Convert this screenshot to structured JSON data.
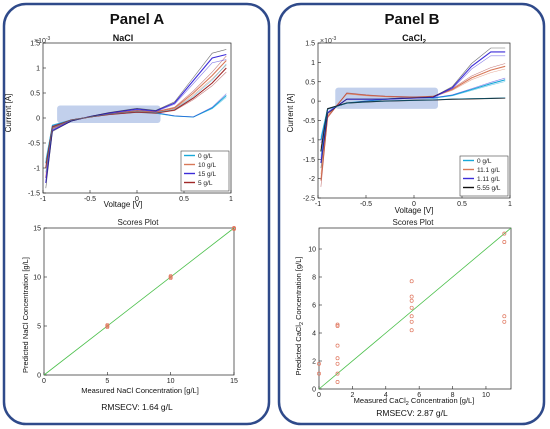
{
  "colors": {
    "panel_border": "#2f4a8a",
    "highlight": "#aec0e6",
    "fit_line": "#4cc04c",
    "scores_marker": "#e07860",
    "series_palette": [
      "#18a8d8",
      "#d87858",
      "#3c2cd8",
      "#a02828",
      "#101010"
    ]
  },
  "panels": [
    {
      "title": "Panel A",
      "rmsecv": "RMSECV: 1.64 g/L",
      "voltammogram": {
        "title": "NaCl",
        "exponent_label": "×10",
        "exponent_power": "-3",
        "xlabel": "Voltage [V]",
        "ylabel": "Current [A]",
        "xlim": [
          -1,
          1
        ],
        "ylim": [
          -1.5,
          1.5
        ],
        "xticks": [
          "-1",
          "-0.5",
          "0",
          "0.5",
          "1"
        ],
        "yticks": [
          "-1.5",
          "-1",
          "-0.5",
          "0",
          "0.5",
          "1",
          "1.5"
        ],
        "highlight_x": [
          -0.85,
          0.25
        ],
        "highlight_y": [
          -0.1,
          0.25
        ],
        "legend_placement": "bottom-right",
        "legend": [
          "0 g/L",
          "10 g/L",
          "15 g/L",
          "5 g/L"
        ],
        "legend_colors": [
          "#18a8d8",
          "#d87858",
          "#3c2cd8",
          "#a02828"
        ]
      },
      "scores": {
        "title": "Scores Plot",
        "xlabel": "Measured NaCl Concentration [g/L]",
        "ylabel": "Predicted  NaCl Concentration [g/L]",
        "xlim": [
          0,
          15
        ],
        "ylim": [
          0,
          15
        ],
        "xticks": [
          "0",
          "5",
          "10",
          "15"
        ],
        "yticks": [
          "0",
          "5",
          "10",
          "15"
        ],
        "points": [
          [
            5,
            4.9
          ],
          [
            5,
            5.1
          ],
          [
            5,
            5.0
          ],
          [
            10,
            9.9
          ],
          [
            10,
            10.1
          ],
          [
            10,
            10.0
          ],
          [
            15,
            14.9
          ],
          [
            15,
            15.0
          ],
          [
            15,
            14.95
          ]
        ]
      }
    },
    {
      "title": "Panel B",
      "rmsecv": "RMSECV: 2.87 g/L",
      "voltammogram": {
        "title": "CaCl",
        "title_sub": "2",
        "exponent_label": "×10",
        "exponent_power": "-3",
        "xlabel": "Voltage [V]",
        "ylabel": "Current [A]",
        "xlim": [
          -1,
          1
        ],
        "ylim": [
          -2.5,
          1.5
        ],
        "xticks": [
          "-1",
          "-0.5",
          "0",
          "0.5",
          "1"
        ],
        "yticks": [
          "-2.5",
          "-2",
          "-1.5",
          "-1",
          "-0.5",
          "0",
          "0.5",
          "1",
          "1.5"
        ],
        "highlight_x": [
          -0.82,
          0.25
        ],
        "highlight_y": [
          -0.2,
          0.35
        ],
        "legend_placement": "bottom-right",
        "legend": [
          "0 g/L",
          "11.1 g/L",
          "1.11 g/L",
          "5.55 g/L"
        ],
        "legend_colors": [
          "#18a8d8",
          "#d87858",
          "#3c2cd8",
          "#101010"
        ]
      },
      "scores": {
        "title": "Scores Plot",
        "xlabel": "Measured CaCl",
        "xlabel_sub": "2",
        "xlabel_tail": " Concentration [g/L]",
        "ylabel": "Predicted  CaCl",
        "ylabel_sub": "2",
        "ylabel_tail": " Concentration [g/L]",
        "xlim": [
          0,
          11.5
        ],
        "ylim": [
          0,
          11.5
        ],
        "xticks": [
          "0",
          "2",
          "4",
          "6",
          "8",
          "10"
        ],
        "yticks": [
          "0",
          "2",
          "4",
          "6",
          "8",
          "10"
        ],
        "points": [
          [
            0,
            1.1
          ],
          [
            0,
            1.8
          ],
          [
            1.11,
            4.5
          ],
          [
            1.11,
            4.6
          ],
          [
            1.11,
            3.1
          ],
          [
            1.11,
            2.2
          ],
          [
            1.11,
            1.8
          ],
          [
            1.11,
            1.1
          ],
          [
            1.11,
            0.5
          ],
          [
            5.55,
            7.7
          ],
          [
            5.55,
            6.6
          ],
          [
            5.55,
            6.3
          ],
          [
            5.55,
            5.8
          ],
          [
            5.55,
            5.2
          ],
          [
            5.55,
            4.8
          ],
          [
            5.55,
            4.2
          ],
          [
            11.1,
            11.1
          ],
          [
            11.1,
            10.5
          ],
          [
            11.1,
            5.2
          ],
          [
            11.1,
            4.8
          ]
        ]
      }
    }
  ],
  "chart_data": [
    {
      "type": "line",
      "title": "NaCl",
      "xlabel": "Voltage [V]",
      "ylabel": "Current [A]",
      "y_scale_label": "×10^-3",
      "xlim": [
        -1,
        1
      ],
      "ylim": [
        -1.5,
        1.5
      ],
      "legend_placement": "bottom-right",
      "series": [
        {
          "name": "0 g/L",
          "x": [
            -0.97,
            -0.9,
            -0.7,
            -0.5,
            -0.3,
            0,
            0.2,
            0.4,
            0.6,
            0.8,
            0.95
          ],
          "y": [
            -0.9,
            -0.15,
            -0.04,
            0.02,
            0.08,
            0.12,
            0.1,
            0.04,
            0.02,
            0.2,
            0.45
          ]
        },
        {
          "name": "10 g/L",
          "x": [
            -0.97,
            -0.9,
            -0.7,
            -0.5,
            -0.3,
            0,
            0.2,
            0.4,
            0.6,
            0.8,
            0.95
          ],
          "y": [
            -1.2,
            -0.2,
            -0.05,
            0.02,
            0.08,
            0.14,
            0.12,
            0.2,
            0.5,
            0.85,
            1.15
          ]
        },
        {
          "name": "15 g/L",
          "x": [
            -0.97,
            -0.9,
            -0.7,
            -0.5,
            -0.3,
            0,
            0.2,
            0.4,
            0.6,
            0.8,
            0.95
          ],
          "y": [
            -1.3,
            -0.25,
            -0.06,
            0.03,
            0.1,
            0.18,
            0.14,
            0.3,
            0.75,
            1.2,
            1.27
          ]
        },
        {
          "name": "5 g/L",
          "x": [
            -0.97,
            -0.9,
            -0.7,
            -0.5,
            -0.3,
            0,
            0.2,
            0.4,
            0.6,
            0.8,
            0.95
          ],
          "y": [
            -1.0,
            -0.18,
            -0.04,
            0.02,
            0.07,
            0.12,
            0.1,
            0.16,
            0.4,
            0.7,
            1.0
          ]
        }
      ]
    },
    {
      "type": "scatter",
      "title": "Scores Plot",
      "xlabel": "Measured NaCl Concentration [g/L]",
      "ylabel": "Predicted  NaCl Concentration [g/L]",
      "xlim": [
        0,
        15
      ],
      "ylim": [
        0,
        15
      ],
      "x": [
        5,
        5,
        5,
        10,
        10,
        10,
        15,
        15,
        15
      ],
      "y": [
        4.9,
        5.1,
        5.0,
        9.9,
        10.1,
        10.0,
        14.9,
        15.0,
        14.95
      ],
      "annotation": "RMSECV: 1.64 g/L"
    },
    {
      "type": "line",
      "title": "CaCl2",
      "xlabel": "Voltage [V]",
      "ylabel": "Current [A]",
      "y_scale_label": "×10^-3",
      "xlim": [
        -1,
        1
      ],
      "ylim": [
        -2.5,
        1.5
      ],
      "legend_placement": "bottom-right",
      "series": [
        {
          "name": "0 g/L",
          "x": [
            -0.97,
            -0.9,
            -0.7,
            -0.5,
            -0.3,
            0,
            0.2,
            0.4,
            0.6,
            0.8,
            0.95
          ],
          "y": [
            -1.0,
            -0.2,
            -0.05,
            0.0,
            0.05,
            0.1,
            0.08,
            0.15,
            0.3,
            0.45,
            0.55
          ]
        },
        {
          "name": "11.1 g/L",
          "x": [
            -0.97,
            -0.9,
            -0.7,
            -0.5,
            -0.3,
            0,
            0.2,
            0.4,
            0.6,
            0.8,
            0.95
          ],
          "y": [
            -2.05,
            -0.4,
            0.2,
            0.15,
            0.12,
            0.1,
            0.12,
            0.3,
            0.6,
            0.8,
            0.9
          ]
        },
        {
          "name": "1.11 g/L",
          "x": [
            -0.97,
            -0.9,
            -0.7,
            -0.5,
            -0.3,
            0,
            0.2,
            0.4,
            0.6,
            0.8,
            0.95
          ],
          "y": [
            -1.6,
            -0.3,
            0.05,
            0.05,
            0.05,
            0.08,
            0.1,
            0.35,
            0.9,
            1.27,
            1.27
          ]
        },
        {
          "name": "5.55 g/L",
          "x": [
            -0.97,
            -0.9,
            -0.7,
            -0.5,
            -0.3,
            0,
            0.2,
            0.4,
            0.6,
            0.8,
            0.95
          ],
          "y": [
            -1.3,
            -0.2,
            -0.05,
            -0.02,
            0.0,
            0.02,
            0.03,
            0.05,
            0.06,
            0.07,
            0.08
          ]
        }
      ]
    },
    {
      "type": "scatter",
      "title": "Scores Plot",
      "xlabel": "Measured CaCl2 Concentration [g/L]",
      "ylabel": "Predicted  CaCl2 Concentration [g/L]",
      "xlim": [
        0,
        11.5
      ],
      "ylim": [
        0,
        11.5
      ],
      "x": [
        0,
        0,
        1.11,
        1.11,
        1.11,
        1.11,
        1.11,
        1.11,
        1.11,
        5.55,
        5.55,
        5.55,
        5.55,
        5.55,
        5.55,
        5.55,
        11.1,
        11.1,
        11.1,
        11.1
      ],
      "y": [
        1.1,
        1.8,
        4.5,
        4.6,
        3.1,
        2.2,
        1.8,
        1.1,
        0.5,
        7.7,
        6.6,
        6.3,
        5.8,
        5.2,
        4.8,
        4.2,
        11.1,
        10.5,
        5.2,
        4.8
      ],
      "annotation": "RMSECV: 2.87 g/L"
    }
  ]
}
